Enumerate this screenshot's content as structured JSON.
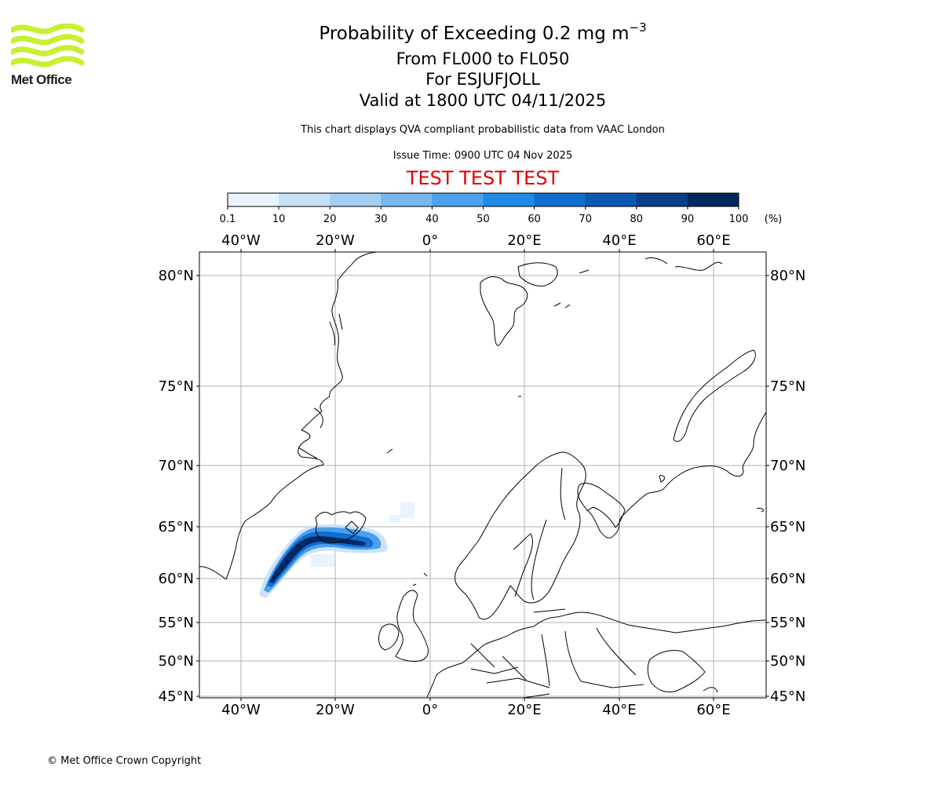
{
  "logo": {
    "text": "Met Office",
    "colors": {
      "waves": "#c6f030",
      "text": "#1b1b1b"
    }
  },
  "title": {
    "main": "Probability of Exceeding 0.2 mg m",
    "main_exp": "−3",
    "flight_levels": "From FL000 to FL050",
    "for": "For ESJUFJOLL",
    "valid": "Valid at 1800 UTC 04/11/2025"
  },
  "subtitle": "This chart displays QVA compliant probabilistic data from VAAC London",
  "issue_time": "Issue Time: 0900 UTC 04 Nov 2025",
  "test_banner": {
    "text": "TEST TEST TEST",
    "color": "#e00000"
  },
  "colorbar": {
    "ticks": [
      "0.1",
      "10",
      "20",
      "30",
      "40",
      "50",
      "60",
      "70",
      "80",
      "90",
      "100"
    ],
    "unit": "(%)",
    "colors": [
      "#e9f3fd",
      "#c6e0f8",
      "#a2cdf4",
      "#77b7f0",
      "#4ba0ec",
      "#2189e6",
      "#0f6ed0",
      "#0a58b0",
      "#063f8a",
      "#03285f"
    ]
  },
  "map": {
    "lon_labels": [
      "40°W",
      "20°W",
      "0°",
      "20°E",
      "40°E",
      "60°E"
    ],
    "lat_labels": [
      "80°N",
      "75°N",
      "70°N",
      "65°N",
      "60°N",
      "55°N",
      "50°N",
      "45°N"
    ],
    "plume_color": "#1565c0",
    "grid_color": "#b0b0b0"
  },
  "copyright": "© Met Office Crown Copyright"
}
